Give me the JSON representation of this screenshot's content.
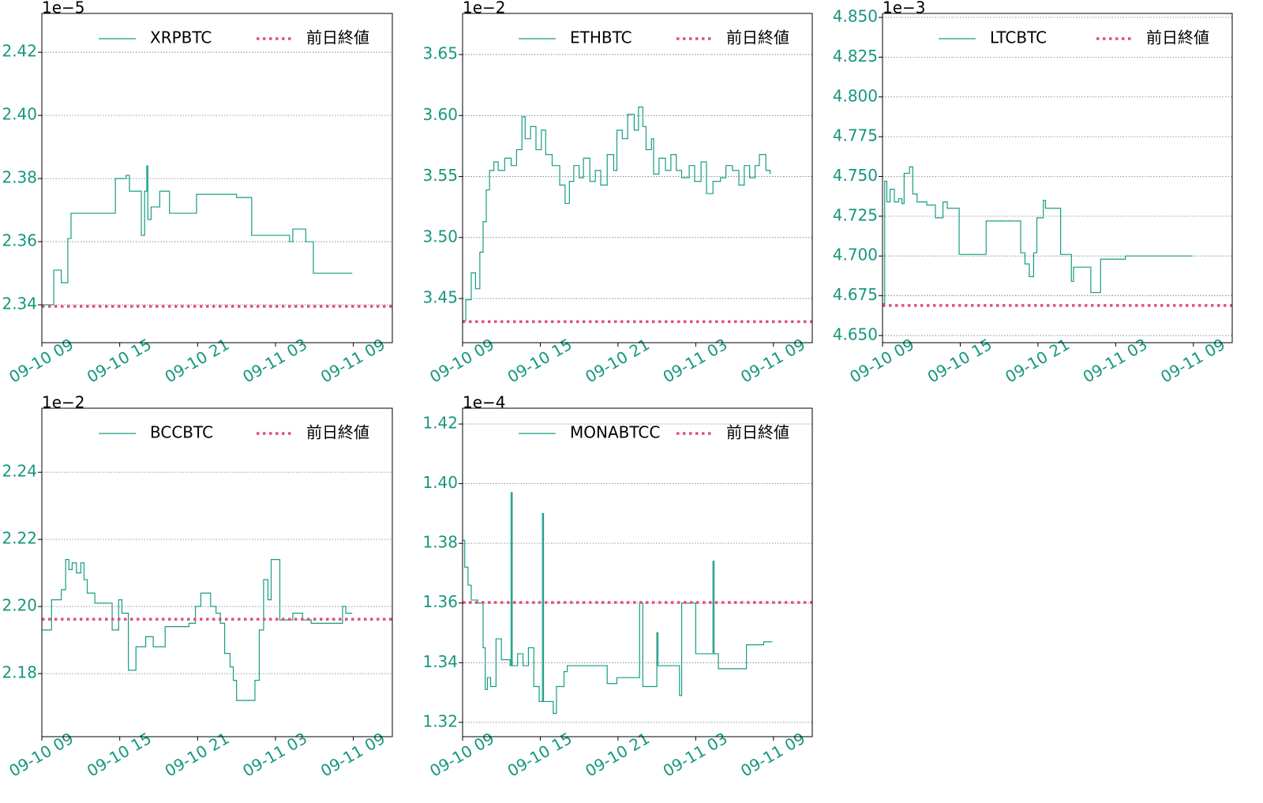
{
  "chart_data": [
    {
      "type": "line",
      "drawstyle": "steps-post",
      "offset_text": "1e−5",
      "grid": true,
      "legend": "upper right",
      "series": [
        {
          "name": "XRPBTC",
          "color": "#179c86",
          "x": [
            "09-10 09:00",
            "09-10 09:55",
            "09-10 10:30",
            "09-10 11:00",
            "09-10 11:15",
            "09-10 14:40",
            "09-10 15:30",
            "09-10 15:45",
            "09-10 16:40",
            "09-10 16:55",
            "09-10 17:05",
            "09-10 17:10",
            "09-10 17:25",
            "09-10 18:05",
            "09-10 18:50",
            "09-10 20:55",
            "09-11 00:00",
            "09-11 01:10",
            "09-11 04:05",
            "09-11 04:20",
            "09-11 05:20",
            "09-11 05:55",
            "09-11 08:55"
          ],
          "values": [
            2.34,
            2.351,
            2.347,
            2.361,
            2.369,
            2.38,
            2.381,
            2.376,
            2.362,
            2.376,
            2.384,
            2.367,
            2.371,
            2.376,
            2.369,
            2.375,
            2.374,
            2.362,
            2.36,
            2.364,
            2.36,
            2.35,
            2.35
          ]
        }
      ],
      "reference": {
        "name": "前日終値",
        "color": "#e0507a",
        "value": 2.3395,
        "linestyle": "dotted"
      },
      "xlim": [
        "09-10 09:00",
        "09-11 12:00"
      ],
      "xticks": [
        "09-10 09",
        "09-10 15",
        "09-10 21",
        "09-11 03",
        "09-11 09"
      ],
      "ylim": [
        2.328,
        2.4323
      ],
      "yticks": [
        2.34,
        2.36,
        2.38,
        {
          "value": 2.4,
          "label": "2.40"
        },
        2.42
      ]
    },
    {
      "type": "line",
      "drawstyle": "steps-post",
      "offset_text": "1e−2",
      "grid": true,
      "legend": "upper right",
      "series": [
        {
          "name": "ETHBTC",
          "color": "#179c86",
          "x": [
            "09-10 09:00",
            "09-10 09:15",
            "09-10 09:40",
            "09-10 10:00",
            "09-10 10:20",
            "09-10 10:35",
            "09-10 10:50",
            "09-10 11:05",
            "09-10 11:25",
            "09-10 11:45",
            "09-10 12:15",
            "09-10 12:45",
            "09-10 13:10",
            "09-10 13:35",
            "09-10 13:50",
            "09-10 14:15",
            "09-10 14:40",
            "09-10 15:05",
            "09-10 15:25",
            "09-10 15:55",
            "09-10 16:30",
            "09-10 16:55",
            "09-10 17:15",
            "09-10 17:35",
            "09-10 18:00",
            "09-10 18:20",
            "09-10 18:50",
            "09-10 19:15",
            "09-10 19:40",
            "09-10 20:10",
            "09-10 20:40",
            "09-10 20:55",
            "09-10 21:20",
            "09-10 21:45",
            "09-10 22:15",
            "09-10 22:35",
            "09-10 22:55",
            "09-10 23:10",
            "09-10 23:35",
            "09-10 23:45",
            "09-11 00:10",
            "09-11 00:40",
            "09-11 01:05",
            "09-11 01:30",
            "09-11 01:55",
            "09-11 02:30",
            "09-11 02:55",
            "09-11 03:25",
            "09-11 03:50",
            "09-11 04:20",
            "09-11 04:55",
            "09-11 05:20",
            "09-11 05:50",
            "09-11 06:20",
            "09-11 06:45",
            "09-11 07:10",
            "09-11 07:35",
            "09-11 07:55",
            "09-11 08:25",
            "09-11 08:45"
          ],
          "values": [
            3.432,
            3.449,
            3.471,
            3.458,
            3.488,
            3.513,
            3.539,
            3.555,
            3.562,
            3.555,
            3.565,
            3.559,
            3.572,
            3.599,
            3.581,
            3.591,
            3.572,
            3.588,
            3.568,
            3.559,
            3.543,
            3.528,
            3.546,
            3.559,
            3.549,
            3.565,
            3.546,
            3.555,
            3.543,
            3.568,
            3.555,
            3.588,
            3.581,
            3.601,
            3.588,
            3.607,
            3.591,
            3.572,
            3.581,
            3.552,
            3.565,
            3.555,
            3.568,
            3.555,
            3.549,
            3.559,
            3.546,
            3.562,
            3.536,
            3.546,
            3.549,
            3.559,
            3.555,
            3.543,
            3.559,
            3.549,
            3.559,
            3.568,
            3.555,
            3.552
          ]
        }
      ],
      "reference": {
        "name": "前日終値",
        "color": "#e0507a",
        "value": 3.431,
        "linestyle": "dotted"
      },
      "xlim": [
        "09-10 09:00",
        "09-11 12:00"
      ],
      "xticks": [
        "09-10 09",
        "09-10 15",
        "09-10 21",
        "09-11 03",
        "09-11 09"
      ],
      "ylim": [
        3.4138,
        3.6837
      ],
      "yticks": [
        3.45,
        {
          "value": 3.5,
          "label": "3.50"
        },
        3.55,
        {
          "value": 3.6,
          "label": "3.60"
        },
        3.65
      ]
    },
    {
      "type": "line",
      "drawstyle": "steps-post",
      "offset_text": "1e−3",
      "grid": true,
      "legend": "upper right",
      "series": [
        {
          "name": "LTCBTC",
          "color": "#179c86",
          "x": [
            "09-10 09:00",
            "09-10 09:10",
            "09-10 09:20",
            "09-10 09:35",
            "09-10 09:55",
            "09-10 10:15",
            "09-10 10:30",
            "09-10 10:40",
            "09-10 11:05",
            "09-10 11:20",
            "09-10 11:40",
            "09-10 12:25",
            "09-10 13:05",
            "09-10 13:40",
            "09-10 14:00",
            "09-10 14:55",
            "09-10 17:00",
            "09-10 19:40",
            "09-10 20:00",
            "09-10 20:20",
            "09-10 20:40",
            "09-10 20:55",
            "09-10 21:25",
            "09-10 21:35",
            "09-10 22:45",
            "09-10 23:35",
            "09-10 23:45",
            "09-11 01:05",
            "09-11 01:50",
            "09-11 03:45",
            "09-11 08:55"
          ],
          "values": [
            4.67,
            4.747,
            4.734,
            4.742,
            4.734,
            4.736,
            4.733,
            4.752,
            4.756,
            4.739,
            4.734,
            4.732,
            4.724,
            4.734,
            4.73,
            4.701,
            4.722,
            4.702,
            4.695,
            4.687,
            4.702,
            4.724,
            4.735,
            4.73,
            4.701,
            4.684,
            4.693,
            4.677,
            4.698,
            4.7,
            4.7
          ]
        }
      ],
      "reference": {
        "name": "前日終値",
        "color": "#e0507a",
        "value": 4.6689,
        "linestyle": "dotted"
      },
      "xlim": [
        "09-10 09:00",
        "09-11 12:00"
      ],
      "xticks": [
        "09-10 09",
        "09-10 15",
        "09-10 21",
        "09-11 03",
        "09-11 09"
      ],
      "ylim": [
        4.6455,
        4.8525
      ],
      "yticks": [
        {
          "value": 4.65,
          "label": "4.650"
        },
        4.675,
        {
          "value": 4.7,
          "label": "4.700"
        },
        4.725,
        {
          "value": 4.75,
          "label": "4.750"
        },
        4.775,
        {
          "value": 4.8,
          "label": "4.800"
        },
        4.825,
        {
          "value": 4.85,
          "label": "4.850"
        }
      ]
    },
    {
      "type": "line",
      "drawstyle": "steps-post",
      "offset_text": "1e−2",
      "grid": true,
      "legend": "upper right",
      "series": [
        {
          "name": "BCCBTC",
          "color": "#179c86",
          "x": [
            "09-10 09:00",
            "09-10 09:45",
            "09-10 10:30",
            "09-10 10:50",
            "09-10 11:05",
            "09-10 11:20",
            "09-10 11:40",
            "09-10 12:00",
            "09-10 12:15",
            "09-10 12:30",
            "09-10 13:05",
            "09-10 14:25",
            "09-10 14:55",
            "09-10 15:10",
            "09-10 15:40",
            "09-10 16:15",
            "09-10 17:00",
            "09-10 17:35",
            "09-10 18:30",
            "09-10 20:20",
            "09-10 20:50",
            "09-10 21:15",
            "09-10 22:00",
            "09-10 22:25",
            "09-10 22:45",
            "09-10 23:05",
            "09-10 23:30",
            "09-10 23:45",
            "09-11 00:00",
            "09-11 01:25",
            "09-11 01:45",
            "09-11 02:05",
            "09-11 02:25",
            "09-11 02:40",
            "09-11 03:20",
            "09-11 04:20",
            "09-11 05:05",
            "09-11 05:45",
            "09-11 08:10",
            "09-11 08:25",
            "09-11 08:55"
          ],
          "values": [
            2.193,
            2.202,
            2.205,
            2.214,
            2.211,
            2.213,
            2.21,
            2.213,
            2.208,
            2.204,
            2.201,
            2.193,
            2.202,
            2.198,
            2.181,
            2.188,
            2.191,
            2.188,
            2.194,
            2.195,
            2.2,
            2.204,
            2.2,
            2.198,
            2.195,
            2.186,
            2.182,
            2.178,
            2.172,
            2.178,
            2.193,
            2.208,
            2.202,
            2.214,
            2.196,
            2.198,
            2.196,
            2.195,
            2.2,
            2.198,
            2.198
          ]
        }
      ],
      "reference": {
        "name": "前日終値",
        "color": "#e0507a",
        "value": 2.1962,
        "linestyle": "dotted"
      },
      "xlim": [
        "09-10 09:00",
        "09-11 12:00"
      ],
      "xticks": [
        "09-10 09",
        "09-10 15",
        "09-10 21",
        "09-11 03",
        "09-11 09"
      ],
      "ylim": [
        2.1612,
        2.2591
      ],
      "yticks": [
        2.18,
        {
          "value": 2.2,
          "label": "2.20"
        },
        2.22,
        2.24
      ]
    },
    {
      "type": "line",
      "drawstyle": "steps-post",
      "offset_text": "1e−4",
      "grid": true,
      "legend": "upper right",
      "series": [
        {
          "name": "MONABTCC",
          "color": "#179c86",
          "x": [
            "09-10 09:00",
            "09-10 09:10",
            "09-10 09:25",
            "09-10 09:40",
            "09-10 10:10",
            "09-10 10:35",
            "09-10 10:45",
            "09-10 10:55",
            "09-10 11:10",
            "09-10 11:35",
            "09-10 12:00",
            "09-10 12:40",
            "09-10 12:45",
            "09-10 12:50",
            "09-10 13:15",
            "09-10 13:40",
            "09-10 14:05",
            "09-10 14:30",
            "09-10 14:55",
            "09-10 15:10",
            "09-10 15:15",
            "09-10 16:00",
            "09-10 16:15",
            "09-10 16:50",
            "09-10 17:05",
            "09-10 20:10",
            "09-10 20:55",
            "09-10 22:30",
            "09-10 22:40",
            "09-10 22:55",
            "09-11 00:00",
            "09-11 00:05",
            "09-11 01:45",
            "09-11 01:55",
            "09-11 03:00",
            "09-11 04:20",
            "09-11 04:25",
            "09-11 04:45",
            "09-11 06:55",
            "09-11 08:15",
            "09-11 08:55"
          ],
          "values": [
            1.381,
            1.372,
            1.366,
            1.361,
            1.36,
            1.345,
            1.331,
            1.335,
            1.332,
            1.348,
            1.341,
            1.339,
            1.397,
            1.339,
            1.343,
            1.339,
            1.345,
            1.332,
            1.327,
            1.39,
            1.327,
            1.323,
            1.332,
            1.337,
            1.339,
            1.333,
            1.335,
            1.335,
            1.36,
            1.332,
            1.35,
            1.339,
            1.329,
            1.36,
            1.343,
            1.374,
            1.343,
            1.338,
            1.346,
            1.347,
            1.347
          ]
        }
      ],
      "reference": {
        "name": "前日終値",
        "color": "#e0507a",
        "value": 1.3602,
        "linestyle": "dotted"
      },
      "xlim": [
        "09-10 09:00",
        "09-11 12:00"
      ],
      "xticks": [
        "09-10 09",
        "09-10 15",
        "09-10 21",
        "09-11 03",
        "09-11 09"
      ],
      "ylim": [
        1.3152,
        1.4253
      ],
      "yticks": [
        1.32,
        1.34,
        1.36,
        1.38,
        {
          "value": 1.4,
          "label": "1.40"
        },
        1.42
      ]
    }
  ]
}
